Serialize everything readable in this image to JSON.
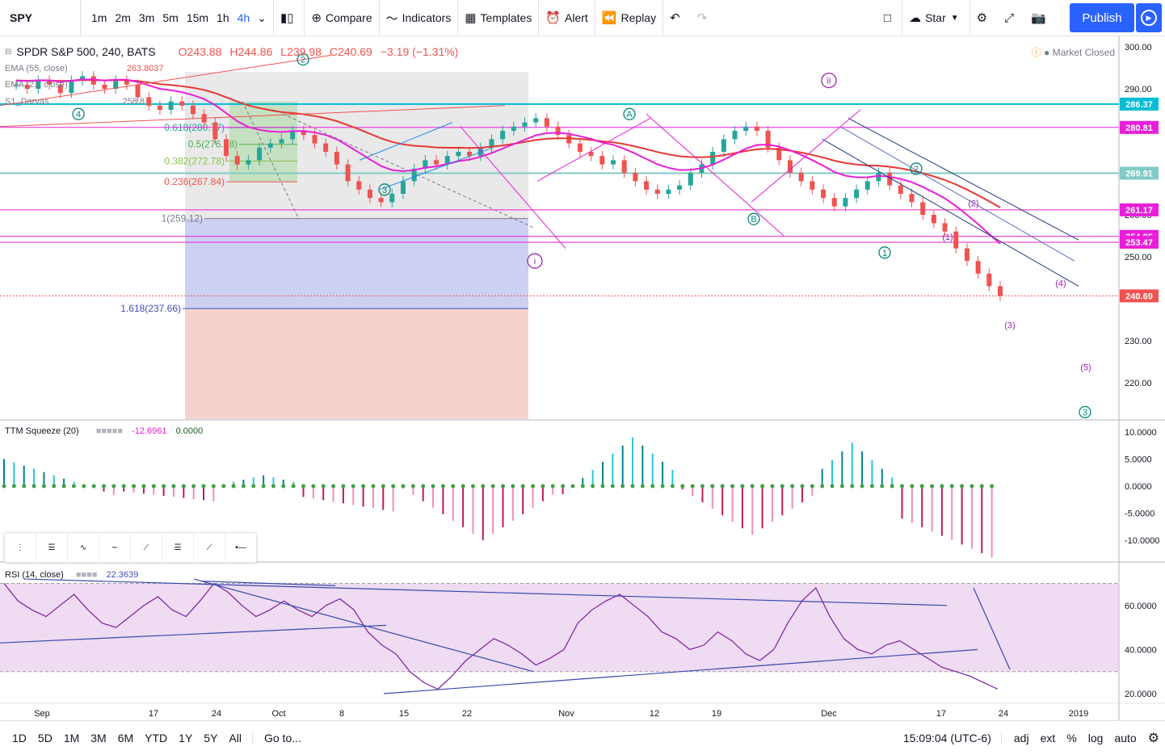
{
  "toolbar": {
    "symbol": "SPY",
    "intervals": [
      "1m",
      "2m",
      "3m",
      "5m",
      "15m",
      "1h",
      "4h"
    ],
    "active_interval": "4h",
    "compare": "Compare",
    "indicators": "Indicators",
    "templates": "Templates",
    "alert": "Alert",
    "replay": "Replay",
    "layout_name": "Star",
    "publish": "Publish"
  },
  "legend": {
    "title": "SPDR S&P 500, 240, BATS",
    "open": "O243.88",
    "high": "H244.86",
    "low": "L239.98",
    "close": "C240.69",
    "change": "−3.19 (−1.31%)",
    "market_status": "Market Closed"
  },
  "overlays": {
    "ema55": "EMA (55, close)",
    "ema21": "EMA (21, close)",
    "darvas": "S1_Darvas",
    "ema55_value": "263.8037",
    "ema21_value": "258.8"
  },
  "price_axis": {
    "ticks": [
      "300.00",
      "290.00",
      "280.00",
      "270.00",
      "260.00",
      "250.00",
      "240.00",
      "230.00",
      "220.00"
    ],
    "labels": [
      {
        "value": "286.37",
        "color": "#00bcd4"
      },
      {
        "value": "280.81",
        "color": "#e91ed9"
      },
      {
        "value": "269.91",
        "color": "#80cbc4"
      },
      {
        "value": "261.17",
        "color": "#e91ed9"
      },
      {
        "value": "254.85",
        "color": "#e91ed9"
      },
      {
        "value": "253.47",
        "color": "#e91ed9"
      },
      {
        "value": "240.69",
        "color": "#ef5350"
      }
    ]
  },
  "fib_levels": [
    {
      "label": "0.618(280.77)",
      "color": "#26a69a"
    },
    {
      "label": "0.5(276.78)",
      "color": "#4caf50"
    },
    {
      "label": "0.382(272.78)",
      "color": "#8bc34a"
    },
    {
      "label": "0.236(267.84)",
      "color": "#ef5350"
    },
    {
      "label": "1(259.12)",
      "color": "#787b86"
    },
    {
      "label": "1.618(237.66)",
      "color": "#3f51b5"
    }
  ],
  "ttm": {
    "title": "TTM Squeeze (20)",
    "value1": "-12.6961",
    "value2": "0.0000",
    "ticks": [
      "10.0000",
      "5.0000",
      "0.0000",
      "-5.0000",
      "-10.0000"
    ]
  },
  "rsi": {
    "title": "RSI (14, close)",
    "value": "22.3639",
    "ticks": [
      "60.0000",
      "40.0000",
      "20.0000"
    ]
  },
  "time_axis": [
    "Sep",
    "17",
    "24",
    "Oct",
    "8",
    "15",
    "22",
    "Nov",
    "12",
    "19",
    "Dec",
    "17",
    "24",
    "2019"
  ],
  "bottom": {
    "ranges": [
      "1D",
      "5D",
      "1M",
      "3M",
      "6M",
      "YTD",
      "1Y",
      "5Y",
      "All"
    ],
    "goto": "Go to...",
    "clock": "15:09:04 (UTC-6)",
    "adj": "adj",
    "ext": "ext",
    "percent": "%",
    "log": "log",
    "auto": "auto"
  }
}
